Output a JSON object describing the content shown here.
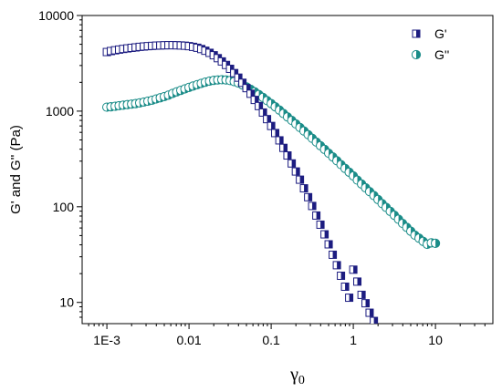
{
  "chart_data": {
    "type": "scatter",
    "title": "",
    "xlabel": "γ",
    "xlabel_sub": "0",
    "ylabel": "G' and G'' (Pa)",
    "xscale": "log",
    "yscale": "log",
    "xlim": [
      0.0005,
      50
    ],
    "ylim": [
      6,
      10000
    ],
    "xticks": [
      {
        "value": 0.001,
        "label": "1E-3"
      },
      {
        "value": 0.01,
        "label": "0.01"
      },
      {
        "value": 0.1,
        "label": "0.1"
      },
      {
        "value": 1,
        "label": "1"
      },
      {
        "value": 10,
        "label": "10"
      }
    ],
    "yticks": [
      {
        "value": 10,
        "label": "10"
      },
      {
        "value": 100,
        "label": "100"
      },
      {
        "value": 1000,
        "label": "1000"
      },
      {
        "value": 10000,
        "label": "10000"
      }
    ],
    "legend_position": "top-right",
    "grid": false,
    "series": [
      {
        "name": "G'",
        "color": "#1c1c80",
        "marker": "half-filled-square",
        "x": [
          0.001,
          0.00112,
          0.00126,
          0.00141,
          0.00158,
          0.00178,
          0.002,
          0.00224,
          0.00251,
          0.00282,
          0.00316,
          0.00355,
          0.00398,
          0.00447,
          0.00501,
          0.00562,
          0.00631,
          0.00708,
          0.00794,
          0.00891,
          0.01,
          0.0112,
          0.0126,
          0.0141,
          0.0158,
          0.0178,
          0.02,
          0.0224,
          0.0251,
          0.0282,
          0.0316,
          0.0355,
          0.0398,
          0.0447,
          0.0501,
          0.0562,
          0.0631,
          0.0708,
          0.0794,
          0.0891,
          0.1,
          0.112,
          0.126,
          0.141,
          0.158,
          0.178,
          0.2,
          0.224,
          0.251,
          0.282,
          0.316,
          0.355,
          0.398,
          0.447,
          0.501,
          0.562,
          0.631,
          0.708,
          0.794,
          0.891,
          1.0,
          1.12,
          1.26,
          1.41,
          1.58,
          1.78
        ],
        "y": [
          4150,
          4250,
          4330,
          4400,
          4470,
          4530,
          4590,
          4640,
          4700,
          4740,
          4780,
          4810,
          4840,
          4860,
          4880,
          4890,
          4890,
          4880,
          4860,
          4830,
          4780,
          4700,
          4600,
          4460,
          4280,
          4070,
          3840,
          3580,
          3310,
          3040,
          2770,
          2500,
          2240,
          1980,
          1740,
          1520,
          1310,
          1130,
          967,
          825,
          700,
          590,
          495,
          413,
          344,
          284,
          234,
          192,
          156,
          126,
          102,
          81,
          65,
          51.5,
          40.5,
          31.5,
          24.5,
          19,
          14.6,
          11.2,
          22,
          16.5,
          12,
          9.8,
          7.8,
          6.4
        ]
      },
      {
        "name": "G''",
        "color": "#1a8c88",
        "marker": "half-filled-circle",
        "x": [
          0.001,
          0.00112,
          0.00126,
          0.00141,
          0.00158,
          0.00178,
          0.002,
          0.00224,
          0.00251,
          0.00282,
          0.00316,
          0.00355,
          0.00398,
          0.00447,
          0.00501,
          0.00562,
          0.00631,
          0.00708,
          0.00794,
          0.00891,
          0.01,
          0.0112,
          0.0126,
          0.0141,
          0.0158,
          0.0178,
          0.02,
          0.0224,
          0.0251,
          0.0282,
          0.0316,
          0.0355,
          0.0398,
          0.0447,
          0.0501,
          0.0562,
          0.0631,
          0.0708,
          0.0794,
          0.0891,
          0.1,
          0.112,
          0.126,
          0.141,
          0.158,
          0.178,
          0.2,
          0.224,
          0.251,
          0.282,
          0.316,
          0.355,
          0.398,
          0.447,
          0.501,
          0.562,
          0.631,
          0.708,
          0.794,
          0.891,
          1.0,
          1.12,
          1.26,
          1.41,
          1.58,
          1.78,
          2.0,
          2.24,
          2.51,
          2.82,
          3.16,
          3.55,
          3.98,
          4.47,
          5.01,
          5.62,
          6.31,
          7.08,
          7.94,
          8.91,
          10.0
        ],
        "y": [
          1100,
          1110,
          1125,
          1140,
          1155,
          1170,
          1185,
          1200,
          1220,
          1245,
          1270,
          1300,
          1340,
          1380,
          1420,
          1470,
          1530,
          1590,
          1650,
          1710,
          1770,
          1830,
          1890,
          1950,
          2010,
          2060,
          2100,
          2120,
          2130,
          2120,
          2090,
          2040,
          1970,
          1880,
          1790,
          1690,
          1590,
          1490,
          1390,
          1290,
          1200,
          1110,
          1025,
          945,
          870,
          800,
          735,
          675,
          620,
          568,
          520,
          475,
          435,
          398,
          363,
          332,
          303,
          276,
          252,
          230,
          210,
          190,
          173,
          158,
          144,
          131,
          119,
          108,
          98.5,
          89.5,
          81.5,
          74,
          67,
          61,
          55.5,
          50.5,
          47,
          43.5,
          40.5,
          42,
          41.5
        ]
      }
    ]
  }
}
